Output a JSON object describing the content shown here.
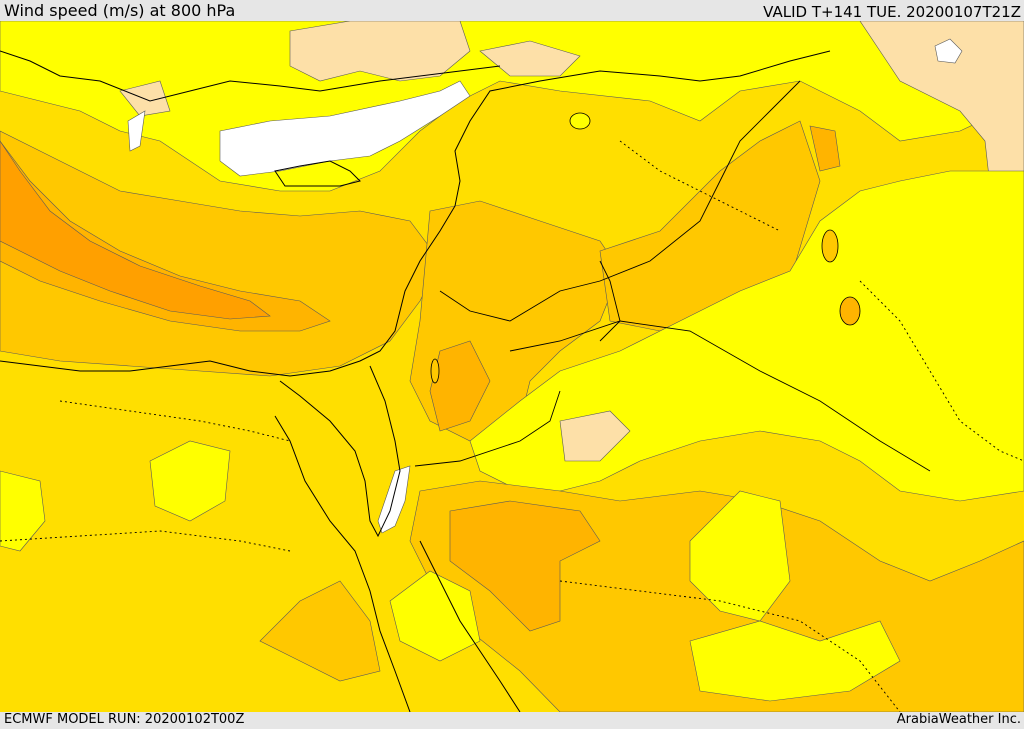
{
  "header": {
    "title": "Wind speed (m/s) at 800 hPa",
    "valid": "VALID T+141 TUE. 20200107T21Z"
  },
  "footer": {
    "model_run": "ECMWF MODEL RUN: 20200102T00Z",
    "credit": "ArabiaWeather Inc."
  },
  "colors": {
    "palest": "#fde0a8",
    "light_yellow": "#ffff00",
    "yellow": "#ffdf00",
    "gold": "#ffc800",
    "orange_light": "#ffb400",
    "orange": "#ffa000",
    "no_data": "#ffffff",
    "border": "#000000"
  }
}
